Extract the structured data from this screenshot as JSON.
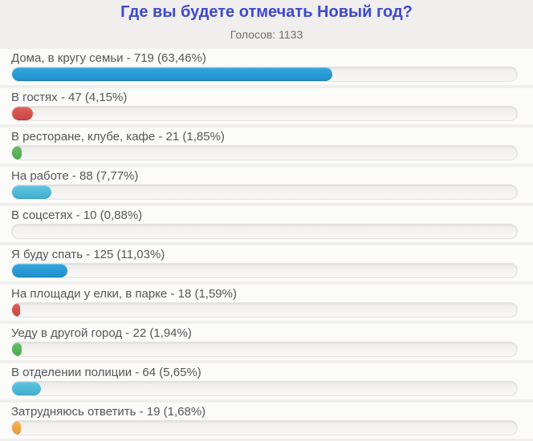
{
  "page": {
    "title": "Где вы будете отмечать Новый год?",
    "votes_label": "Голосов: 1133"
  },
  "colors": {
    "blue": "#2799d4",
    "red": "#d4524e",
    "green": "#58b458",
    "cyan": "#4fbad7",
    "orange": "#eea43f",
    "title_text": "#3d49cf",
    "label_text": "#555658",
    "track_background": "#f4f3f2",
    "row_background": "#fbfbfa",
    "page_background": "#f0efed"
  },
  "options": [
    {
      "label": "Дома, в кругу семьи - 719 (63,46%)",
      "votes": 719,
      "percent": 63.46,
      "color": "blue"
    },
    {
      "label": "В гостях - 47 (4,15%)",
      "votes": 47,
      "percent": 4.15,
      "color": "red"
    },
    {
      "label": "В ресторане, клубе, кафе - 21 (1,85%)",
      "votes": 21,
      "percent": 1.85,
      "color": "green"
    },
    {
      "label": "На работе - 88 (7,77%)",
      "votes": 88,
      "percent": 7.77,
      "color": "cyan"
    },
    {
      "label": "В соцсетях - 10 (0,88%)",
      "votes": 10,
      "percent": 0.88,
      "color": "blue"
    },
    {
      "label": "Я буду спать - 125 (11,03%)",
      "votes": 125,
      "percent": 11.03,
      "color": "blue"
    },
    {
      "label": "На площади у елки, в парке - 18 (1,59%)",
      "votes": 18,
      "percent": 1.59,
      "color": "red"
    },
    {
      "label": "Уеду в другой город - 22 (1,94%)",
      "votes": 22,
      "percent": 1.94,
      "color": "green"
    },
    {
      "label": "В отделении полиции - 64 (5,65%)",
      "votes": 64,
      "percent": 5.65,
      "color": "cyan"
    },
    {
      "label": "Затрудняюсь ответить - 19 (1,68%)",
      "votes": 19,
      "percent": 1.68,
      "color": "orange"
    }
  ],
  "chart_data": {
    "type": "bar",
    "orientation": "horizontal",
    "title": "Где вы будете отмечать Новый год?",
    "subtitle": "Голосов: 1133",
    "total_votes": 1133,
    "categories": [
      "Дома, в кругу семьи",
      "В гостях",
      "В ресторане, клубе, кафе",
      "На работе",
      "В соцсетях",
      "Я буду спать",
      "На площади у елки, в парке",
      "Уеду в другой город",
      "В отделении полиции",
      "Затрудняюсь ответить"
    ],
    "values": [
      719,
      47,
      21,
      88,
      10,
      125,
      18,
      22,
      64,
      19
    ],
    "percents": [
      63.46,
      4.15,
      1.85,
      7.77,
      0.88,
      11.03,
      1.59,
      1.94,
      5.65,
      1.68
    ],
    "xlim": [
      0,
      100
    ],
    "grid": false,
    "legend": false,
    "bar_colors": [
      "blue",
      "red",
      "green",
      "cyan",
      "blue",
      "blue",
      "red",
      "green",
      "cyan",
      "orange"
    ]
  }
}
